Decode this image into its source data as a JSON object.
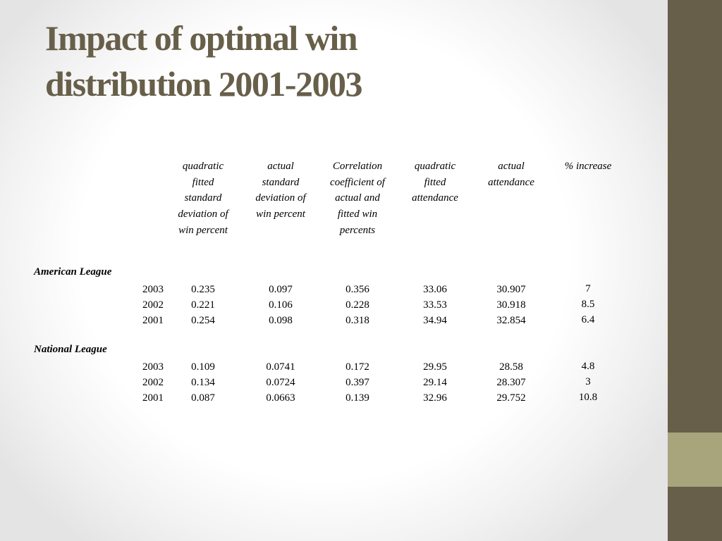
{
  "slide": {
    "title_line1": "Impact of optimal win",
    "title_line2": "distribution 2001-2003"
  },
  "theme": {
    "title_color": "#675f49",
    "sidebar_color": "#675f49",
    "sidebar_accent_color": "#a8a47c"
  },
  "table": {
    "columns": [
      [
        "quadratic",
        "fitted",
        "standard",
        "deviation of",
        "win percent"
      ],
      [
        "actual",
        "standard",
        "deviation of",
        "win percent"
      ],
      [
        "Correlation",
        "coefficient of",
        "actual and",
        "fitted win",
        "percents"
      ],
      [
        "quadratic",
        "fitted",
        "attendance"
      ],
      [
        "actual",
        "attendance"
      ],
      [
        "% increase"
      ]
    ],
    "leagues": [
      {
        "name": "American League",
        "rows": [
          [
            "2003",
            "0.235",
            "0.097",
            "0.356",
            "33.06",
            "30.907",
            "7"
          ],
          [
            "2002",
            "0.221",
            "0.106",
            "0.228",
            "33.53",
            "30.918",
            "8.5"
          ],
          [
            "2001",
            "0.254",
            "0.098",
            "0.318",
            "34.94",
            "32.854",
            "6.4"
          ]
        ]
      },
      {
        "name": "National League",
        "rows": [
          [
            "2003",
            "0.109",
            "0.0741",
            "0.172",
            "29.95",
            "28.58",
            "4.8"
          ],
          [
            "2002",
            "0.134",
            "0.0724",
            "0.397",
            "29.14",
            "28.307",
            "3"
          ],
          [
            "2001",
            "0.087",
            "0.0663",
            "0.139",
            "32.96",
            "29.752",
            "10.8"
          ]
        ]
      }
    ]
  }
}
